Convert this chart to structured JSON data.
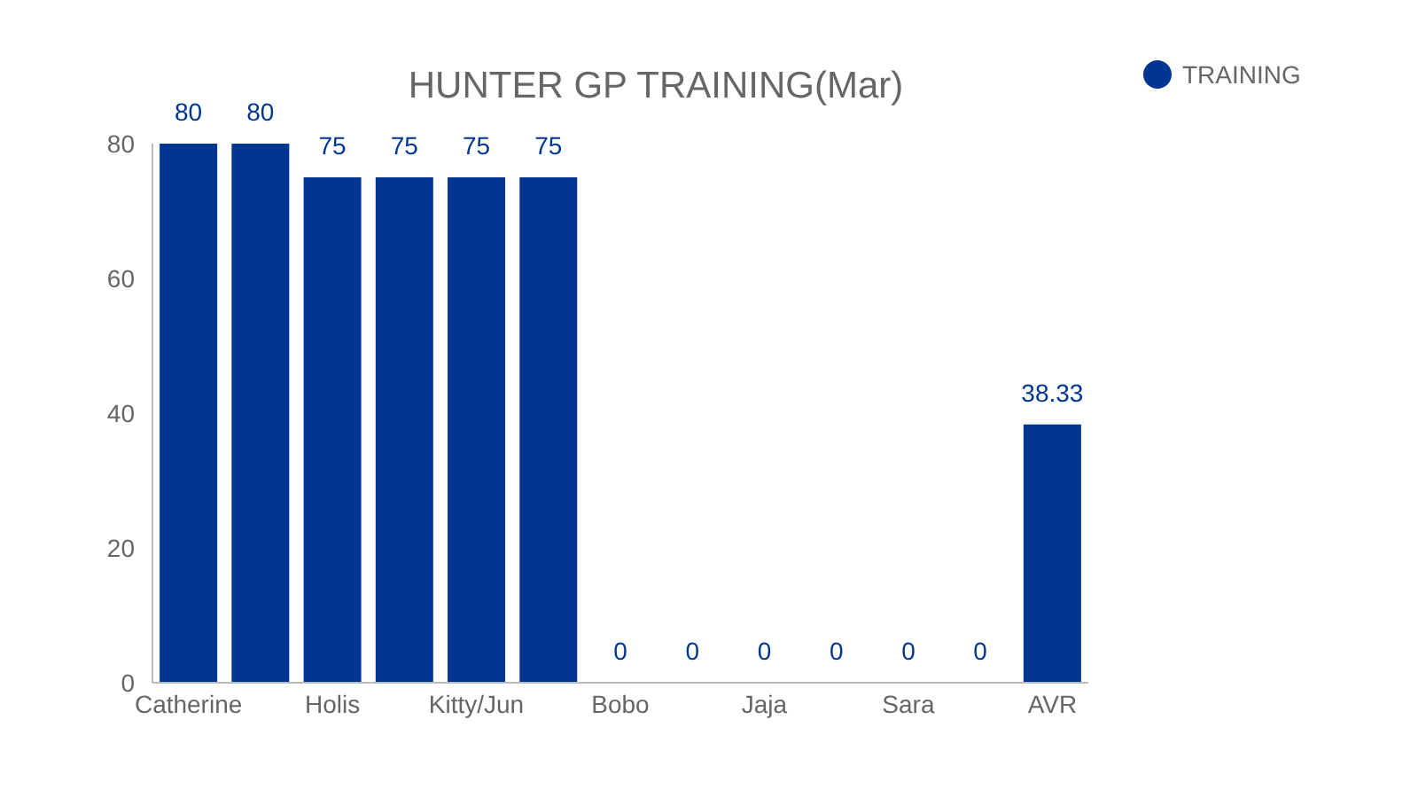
{
  "chart_data": {
    "type": "bar",
    "title": "HUNTER GP TRAINING(Mar)",
    "categories": [
      "Catherine",
      null,
      "Holis",
      null,
      "Kitty/Jun",
      null,
      "Bobo",
      null,
      "Jaja",
      null,
      "Sara",
      null,
      "AVR"
    ],
    "series": [
      {
        "name": "TRAINING",
        "color": "#003591",
        "values": [
          80,
          80,
          75,
          75,
          75,
          75,
          0,
          0,
          0,
          0,
          0,
          0,
          38.33
        ]
      }
    ],
    "ylim": [
      0,
      80
    ],
    "yticks": [
      0,
      20,
      40,
      60,
      80
    ],
    "grid": false,
    "legend": "top right",
    "data_labels": true
  }
}
